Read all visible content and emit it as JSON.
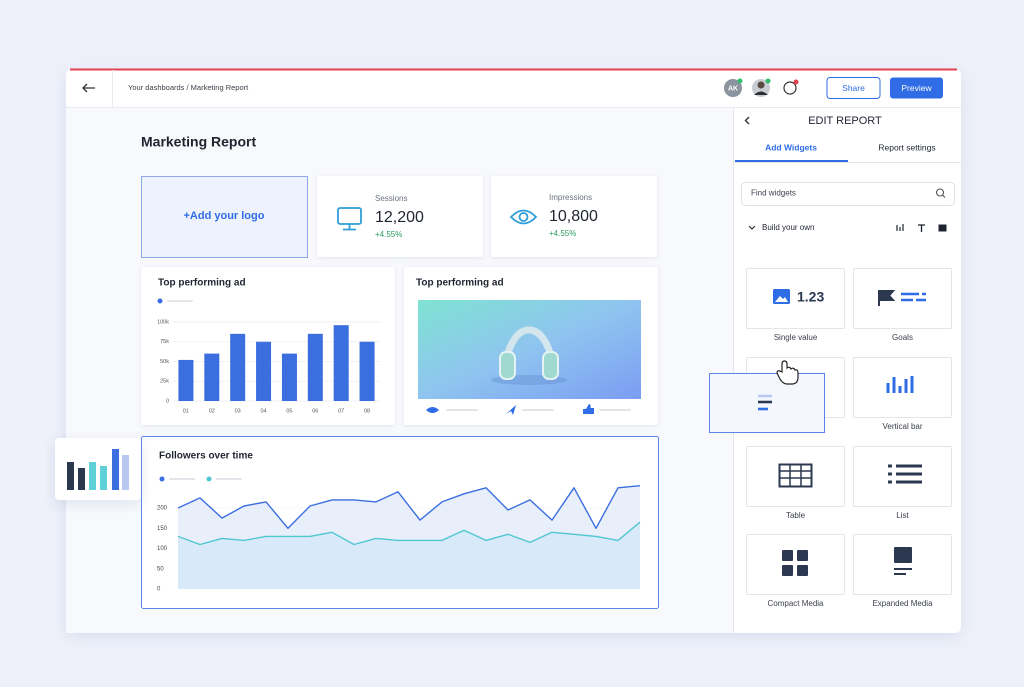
{
  "topbar": {
    "breadcrumb": "Your dashboards / Marketing Report",
    "avatar_initials": "AK",
    "share_button": "Share",
    "preview_button": "Preview"
  },
  "report": {
    "title": "Marketing Report",
    "logo_placeholder": "+Add your logo",
    "kpis": [
      {
        "label": "Sessions",
        "value": "12,200",
        "change": "+4.55%"
      },
      {
        "label": "Impressions",
        "value": "10,800",
        "change": "+4.55%"
      }
    ],
    "bar_widget": {
      "title": "Top performing ad",
      "chart_data": {
        "type": "bar",
        "categories": [
          "01",
          "02",
          "03",
          "04",
          "05",
          "06",
          "07",
          "08"
        ],
        "values": [
          52,
          60,
          85,
          75,
          60,
          85,
          96,
          75
        ],
        "color": "#3b6fe0",
        "ylim": [
          0,
          100
        ],
        "yticks": [
          0,
          {
            "value": 25,
            "label": "25k"
          },
          {
            "value": 50,
            "label": "50k"
          },
          {
            "value": 75,
            "label": "75k"
          },
          {
            "value": 100,
            "label": "100k"
          }
        ],
        "grid": true
      }
    },
    "media_widget": {
      "title": "Top performing ad"
    },
    "line_widget": {
      "title": "Followers over time",
      "chart_data": {
        "type": "area",
        "series": [
          {
            "color": "#3b6fe0",
            "fill": "#e7ecfb",
            "values": [
              200,
              225,
              175,
              205,
              215,
              150,
              205,
              220,
              220,
              215,
              240,
              170,
              215,
              235,
              250,
              195,
              220,
              170,
              250,
              150,
              250,
              255
            ]
          },
          {
            "color": "#4fc6d0",
            "fill": "#d6e9f9",
            "values": [
              130,
              110,
              125,
              120,
              130,
              130,
              130,
              140,
              110,
              125,
              120,
              120,
              120,
              145,
              120,
              135,
              115,
              140,
              135,
              130,
              120,
              165
            ]
          }
        ],
        "ylim": [
          0,
          260
        ],
        "yticks": [
          0,
          50,
          100,
          150,
          200
        ],
        "grid": true
      }
    }
  },
  "panel": {
    "title": "EDIT REPORT",
    "tabs": [
      "Add Widgets",
      "Report settings"
    ],
    "search_placeholder": "Find widgets",
    "section": "Build your own",
    "single_value_sample": "1.23",
    "widgets": [
      "Single value",
      "Goals",
      "Vertical bar",
      "Table",
      "List",
      "Compact Media",
      "Expanded Media"
    ]
  }
}
